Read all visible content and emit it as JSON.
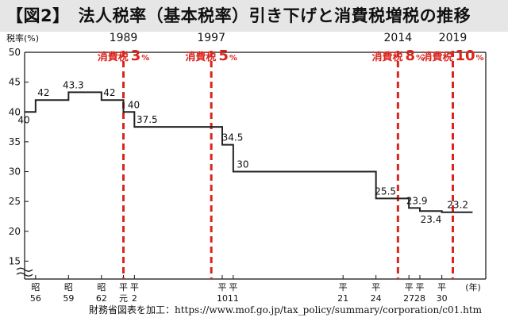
{
  "title": "【図2】　法人税率（基本税率）引き下げと消費税増税の推移",
  "source": "財務省図表を加工：https://www.mof.go.jp/tax_policy/summary/corporation/c01.htm",
  "colors": {
    "line": "#222222",
    "event": "#d9251d",
    "axis": "#111111",
    "grid": "#dddddd"
  },
  "chart_data": {
    "type": "line",
    "title": "法人税率（基本税率）引き下げと消費税増税の推移",
    "ylabel": "税率(%)",
    "xlabel": "(年)",
    "ylim": [
      12,
      50
    ],
    "yticks": [
      15,
      20,
      25,
      30,
      35,
      40,
      45,
      50
    ],
    "ytick_labels": [
      "15",
      "20",
      "25",
      "30",
      "35",
      "40",
      "45",
      "50"
    ],
    "xlim": [
      1980,
      2022
    ],
    "grid": false,
    "x_ticks": [
      {
        "x": 1981,
        "top": "昭",
        "bottom": "56"
      },
      {
        "x": 1984,
        "top": "昭",
        "bottom": "59"
      },
      {
        "x": 1987,
        "top": "昭",
        "bottom": "62"
      },
      {
        "x": 1989,
        "top": "平",
        "bottom": "元"
      },
      {
        "x": 1990,
        "top": "平",
        "bottom": "2"
      },
      {
        "x": 1998,
        "top": "平",
        "bottom": "10"
      },
      {
        "x": 1999,
        "top": "平",
        "bottom": "11"
      },
      {
        "x": 2009,
        "top": "平",
        "bottom": "21"
      },
      {
        "x": 2012,
        "top": "平",
        "bottom": "24"
      },
      {
        "x": 2015,
        "top": "平",
        "bottom": "27"
      },
      {
        "x": 2016,
        "top": "平",
        "bottom": "28"
      },
      {
        "x": 2018,
        "top": "平",
        "bottom": "30"
      }
    ],
    "series": [
      {
        "steps": [
          {
            "x": 1980,
            "y": 40,
            "label": "40"
          },
          {
            "x": 1981,
            "y": 42,
            "label": "42"
          },
          {
            "x": 1984,
            "y": 43.3,
            "label": "43.3"
          },
          {
            "x": 1987,
            "y": 42,
            "label": "42"
          },
          {
            "x": 1989,
            "y": 40,
            "label": "40"
          },
          {
            "x": 1990,
            "y": 37.5,
            "label": "37.5"
          },
          {
            "x": 1998,
            "y": 34.5,
            "label": "34.5"
          },
          {
            "x": 1999,
            "y": 30,
            "label": "30"
          },
          {
            "x": 2012,
            "y": 25.5,
            "label": "25.5"
          },
          {
            "x": 2015,
            "y": 23.9,
            "label": "23.9"
          },
          {
            "x": 2016,
            "y": 23.4,
            "label": "23.4"
          },
          {
            "x": 2018,
            "y": 23.2,
            "label": "23.2"
          }
        ],
        "x_end": 2020.8
      }
    ],
    "events": [
      {
        "x": 1989,
        "year": "1989",
        "tax_label": "消費税",
        "rate": "3",
        "unit": "%"
      },
      {
        "x": 1997,
        "year": "1997",
        "tax_label": "消費税",
        "rate": "5",
        "unit": "%"
      },
      {
        "x": 2014,
        "year": "2014",
        "tax_label": "消費税",
        "rate": "8",
        "unit": "%"
      },
      {
        "x": 2019,
        "year": "2019",
        "tax_label": "消費税",
        "rate": "10",
        "unit": "%"
      }
    ]
  }
}
